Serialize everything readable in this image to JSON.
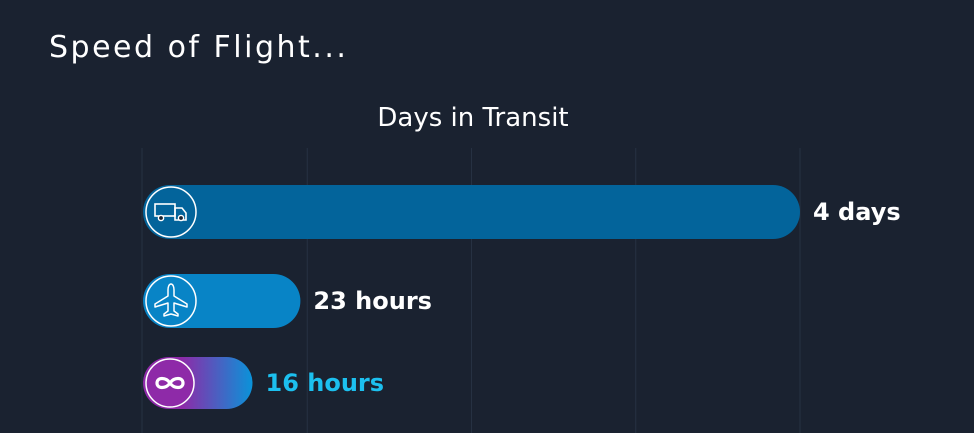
{
  "page": {
    "title": "Speed of Flight..."
  },
  "chart_data": {
    "type": "bar",
    "orientation": "horizontal",
    "title": "Days in Transit",
    "unit": "hours",
    "categories": [
      "truck",
      "airplane",
      "infinity"
    ],
    "values": [
      96,
      23,
      16
    ],
    "labels": [
      "4 days",
      "23 hours",
      "16 hours"
    ],
    "xlim": [
      0,
      96
    ],
    "grid": true,
    "colors": {
      "bar1": "#03649b",
      "bar2": "#0884c6",
      "bar3_start": "#8e2aa8",
      "bar3_end": "#0a93d9",
      "label_default": "#ffffff",
      "label_accent": "#1cc0ef",
      "grid": "#263142"
    },
    "icons": [
      "truck-icon",
      "airplane-icon",
      "infinity-icon"
    ]
  }
}
